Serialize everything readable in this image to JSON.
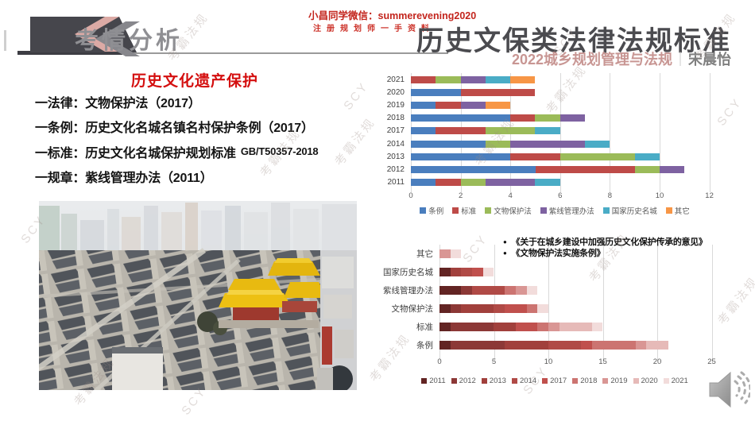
{
  "header": {
    "section_label": "考情分析",
    "contact_line": "小昌同学微信：summerevening2020",
    "slogan": "注册规划师一手资料",
    "title": "历史文保类法律法规标准",
    "subtitle": "2022城乡规划管理与法规",
    "subtitle_divider": "｜",
    "author": "宋晨怡"
  },
  "left_panel": {
    "heading": "历史文化遗产保护",
    "bullets": [
      {
        "label": "一法律：",
        "text": "文物保护法（2017）",
        "note": ""
      },
      {
        "label": "一条例：",
        "text": "历史文化名城名镇名村保护条例（2017）",
        "note": ""
      },
      {
        "label": "一标准：",
        "text": "历史文化名城保护规划标准",
        "note": "GB/T50357-2018"
      },
      {
        "label": "一规章：",
        "text": "紫线管理办法（2011）",
        "note": ""
      }
    ]
  },
  "watermark": {
    "brand": "考霸法规",
    "initials": "SCY"
  },
  "colors": {
    "title_gray": "#4b4b4f",
    "subtitle_rose": "#c89693",
    "contact_red": "#c3251d",
    "heading_red": "#d40f0f",
    "grid": "#d9d9d9"
  },
  "chart_data": [
    {
      "type": "bar",
      "orientation": "horizontal-stacked",
      "title": "",
      "categories": [
        "2021",
        "2020",
        "2019",
        "2018",
        "2017",
        "2014",
        "2013",
        "2012",
        "2011"
      ],
      "series": [
        {
          "name": "条例",
          "color": "#4A7EBE",
          "values": [
            0,
            2,
            1,
            4,
            1,
            3,
            4,
            5,
            1
          ]
        },
        {
          "name": "标准",
          "color": "#BE4B48",
          "values": [
            1,
            3,
            1,
            1,
            2,
            0,
            2,
            4,
            1
          ]
        },
        {
          "name": "文物保护法",
          "color": "#9BBB59",
          "values": [
            1,
            0,
            0,
            1,
            2,
            1,
            3,
            1,
            1
          ]
        },
        {
          "name": "紫线管理办法",
          "color": "#7E62A1",
          "values": [
            1,
            0,
            1,
            1,
            0,
            3,
            0,
            1,
            2
          ]
        },
        {
          "name": "国家历史名城",
          "color": "#4AACC6",
          "values": [
            1,
            0,
            0,
            0,
            1,
            1,
            1,
            0,
            1
          ]
        },
        {
          "name": "其它",
          "color": "#F79646",
          "values": [
            1,
            0,
            1,
            0,
            0,
            0,
            0,
            0,
            0
          ]
        }
      ],
      "xlim": [
        0,
        12
      ],
      "xticks": [
        0,
        2,
        4,
        6,
        8,
        10,
        12
      ],
      "grid": true,
      "legend_position": "bottom"
    },
    {
      "type": "bar",
      "orientation": "horizontal-stacked",
      "title": "",
      "categories": [
        "其它",
        "国家历史名城",
        "紫线管理办法",
        "文物保护法",
        "标准",
        "条例"
      ],
      "series": [
        {
          "name": "2011",
          "color": "#622423",
          "values": [
            0,
            1,
            2,
            1,
            1,
            1
          ]
        },
        {
          "name": "2012",
          "color": "#8C3836",
          "values": [
            0,
            0,
            1,
            1,
            4,
            5
          ]
        },
        {
          "name": "2013",
          "color": "#A1403C",
          "values": [
            0,
            1,
            0,
            3,
            2,
            4
          ]
        },
        {
          "name": "2014",
          "color": "#B04A46",
          "values": [
            0,
            1,
            3,
            1,
            0,
            3
          ]
        },
        {
          "name": "2017",
          "color": "#C0504D",
          "values": [
            0,
            1,
            0,
            2,
            2,
            1
          ]
        },
        {
          "name": "2018",
          "color": "#CC7471",
          "values": [
            0,
            0,
            1,
            1,
            1,
            4
          ]
        },
        {
          "name": "2019",
          "color": "#D99694",
          "values": [
            1,
            0,
            1,
            0,
            1,
            1
          ]
        },
        {
          "name": "2020",
          "color": "#E6BAB8",
          "values": [
            0,
            0,
            0,
            0,
            3,
            2
          ]
        },
        {
          "name": "2021",
          "color": "#F2DCDB",
          "values": [
            1,
            1,
            1,
            1,
            1,
            0
          ]
        }
      ],
      "xlim": [
        0,
        25
      ],
      "xticks": [
        0,
        5,
        10,
        15,
        20,
        25
      ],
      "grid": true,
      "legend_position": "bottom",
      "annotations": [
        "《关于在城乡建设中加强历史文化保护传承的意见》",
        "《文物保护法实施条例》"
      ]
    }
  ]
}
